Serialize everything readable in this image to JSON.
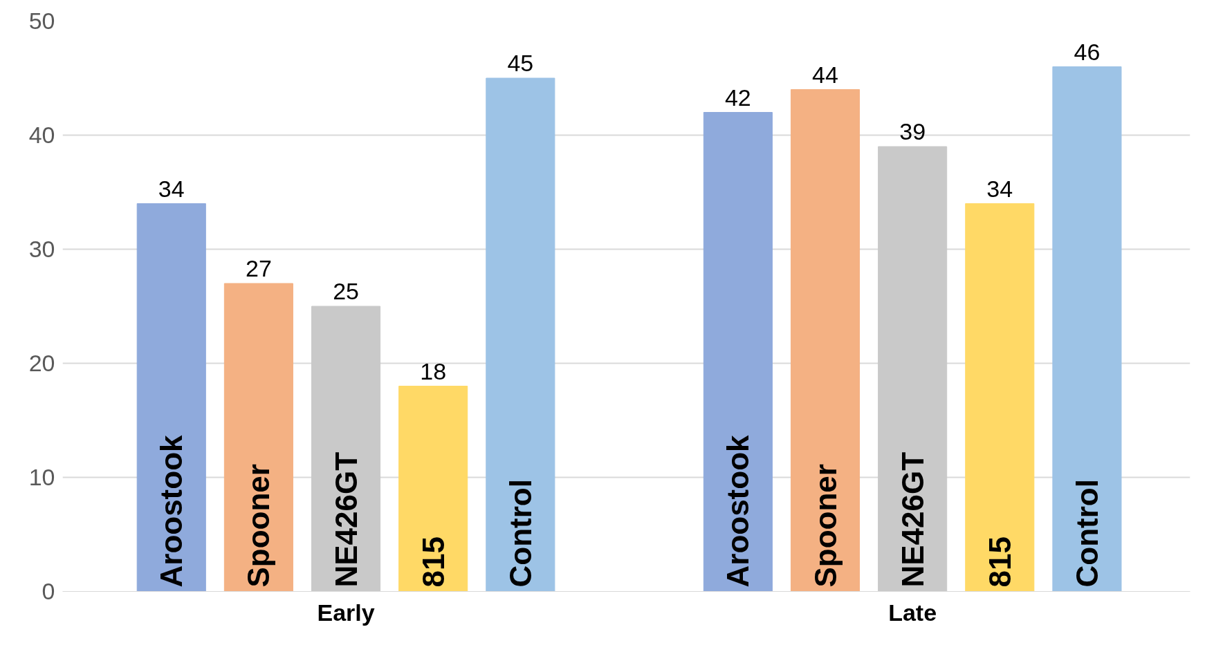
{
  "chart_data": {
    "type": "bar",
    "categories": [
      "Early",
      "Late"
    ],
    "series": [
      {
        "name": "Aroostook",
        "color": "#8faadc",
        "values": [
          34,
          42
        ]
      },
      {
        "name": "Spooner",
        "color": "#f4b183",
        "values": [
          27,
          44
        ]
      },
      {
        "name": "NE426GT",
        "color": "#c9c9c9",
        "values": [
          25,
          39
        ]
      },
      {
        "name": "815",
        "color": "#ffd966",
        "values": [
          18,
          34
        ]
      },
      {
        "name": "Control",
        "color": "#9dc3e6",
        "values": [
          45,
          46
        ]
      }
    ],
    "ylim": [
      0,
      50
    ],
    "yticks": [
      0,
      10,
      20,
      30,
      40,
      50
    ],
    "grid": "y",
    "data_labels": true
  }
}
